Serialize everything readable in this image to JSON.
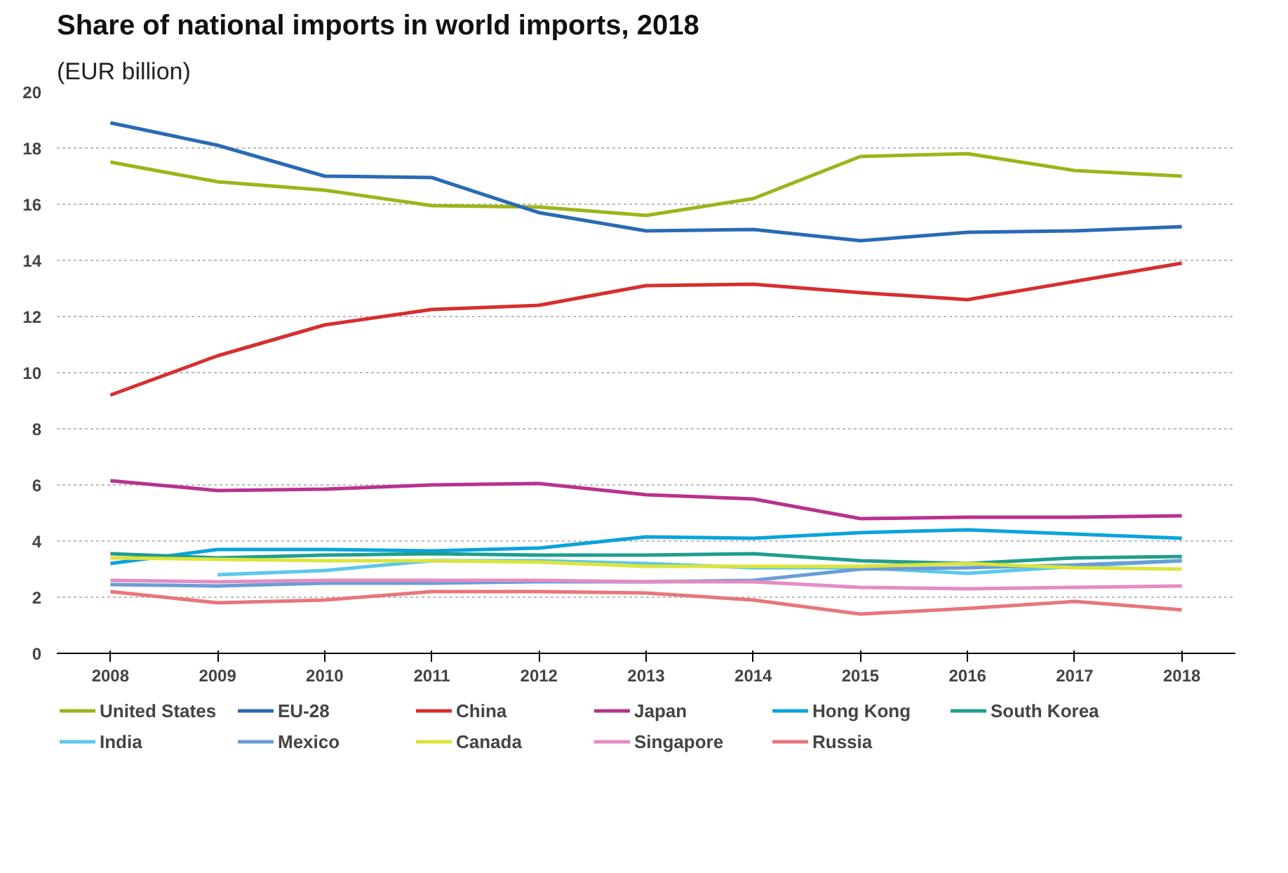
{
  "chart_data": {
    "type": "line",
    "title": "Share of national imports in world imports, 2018",
    "subtitle": "(EUR billion)",
    "x": [
      2008,
      2009,
      2010,
      2011,
      2012,
      2013,
      2014,
      2015,
      2016,
      2017,
      2018
    ],
    "xlim": [
      2007.5,
      2018.5
    ],
    "xticks": [
      2008,
      2009,
      2010,
      2011,
      2012,
      2013,
      2014,
      2015,
      2016,
      2017,
      2018
    ],
    "ylim": [
      0,
      20
    ],
    "yticks": [
      0,
      2,
      4,
      6,
      8,
      10,
      12,
      14,
      16,
      18,
      20
    ],
    "grid": "y",
    "legend": "bottom",
    "line_style": "solid",
    "marker": "none",
    "series": [
      {
        "name": "United States",
        "color": "#9bb51a",
        "values": [
          17.5,
          16.8,
          16.5,
          15.95,
          15.9,
          15.6,
          16.2,
          17.7,
          17.8,
          17.2,
          17.0
        ]
      },
      {
        "name": "EU-28",
        "color": "#2a6ab5",
        "values": [
          18.9,
          18.1,
          17.0,
          16.95,
          15.7,
          15.05,
          15.1,
          14.7,
          15.0,
          15.05,
          15.2
        ]
      },
      {
        "name": "China",
        "color": "#d62f2f",
        "values": [
          9.2,
          10.6,
          11.7,
          12.25,
          12.4,
          13.1,
          13.15,
          12.85,
          12.6,
          13.25,
          13.9
        ]
      },
      {
        "name": "Japan",
        "color": "#b8328e",
        "values": [
          6.15,
          5.8,
          5.85,
          6.0,
          6.05,
          5.65,
          5.5,
          4.8,
          4.85,
          4.85,
          4.9
        ]
      },
      {
        "name": "Hong Kong",
        "color": "#0aa3dc",
        "values": [
          3.2,
          3.7,
          3.7,
          3.65,
          3.75,
          4.15,
          4.1,
          4.3,
          4.4,
          4.25,
          4.1
        ]
      },
      {
        "name": "South Korea",
        "color": "#1e9e8f",
        "values": [
          3.55,
          3.4,
          3.5,
          3.55,
          3.5,
          3.5,
          3.55,
          3.3,
          3.2,
          3.4,
          3.45
        ]
      },
      {
        "name": "India",
        "color": "#5bc8ea",
        "values": [
          null,
          2.8,
          2.95,
          3.3,
          3.3,
          3.2,
          3.05,
          3.05,
          2.85,
          3.1,
          3.3
        ]
      },
      {
        "name": "Mexico",
        "color": "#6a9dd6",
        "values": [
          2.45,
          2.4,
          2.5,
          2.5,
          2.55,
          2.55,
          2.6,
          3.0,
          3.05,
          3.15,
          3.3
        ]
      },
      {
        "name": "Canada",
        "color": "#dde43a",
        "values": [
          3.4,
          3.35,
          3.3,
          3.3,
          3.25,
          3.1,
          3.1,
          3.1,
          3.2,
          3.05,
          3.0
        ]
      },
      {
        "name": "Singapore",
        "color": "#e38cc3",
        "values": [
          2.6,
          2.55,
          2.6,
          2.6,
          2.6,
          2.55,
          2.55,
          2.35,
          2.3,
          2.35,
          2.4
        ]
      },
      {
        "name": "Russia",
        "color": "#e8767a",
        "values": [
          2.2,
          1.8,
          1.9,
          2.2,
          2.2,
          2.15,
          1.9,
          1.4,
          1.6,
          1.85,
          1.55
        ]
      }
    ]
  }
}
